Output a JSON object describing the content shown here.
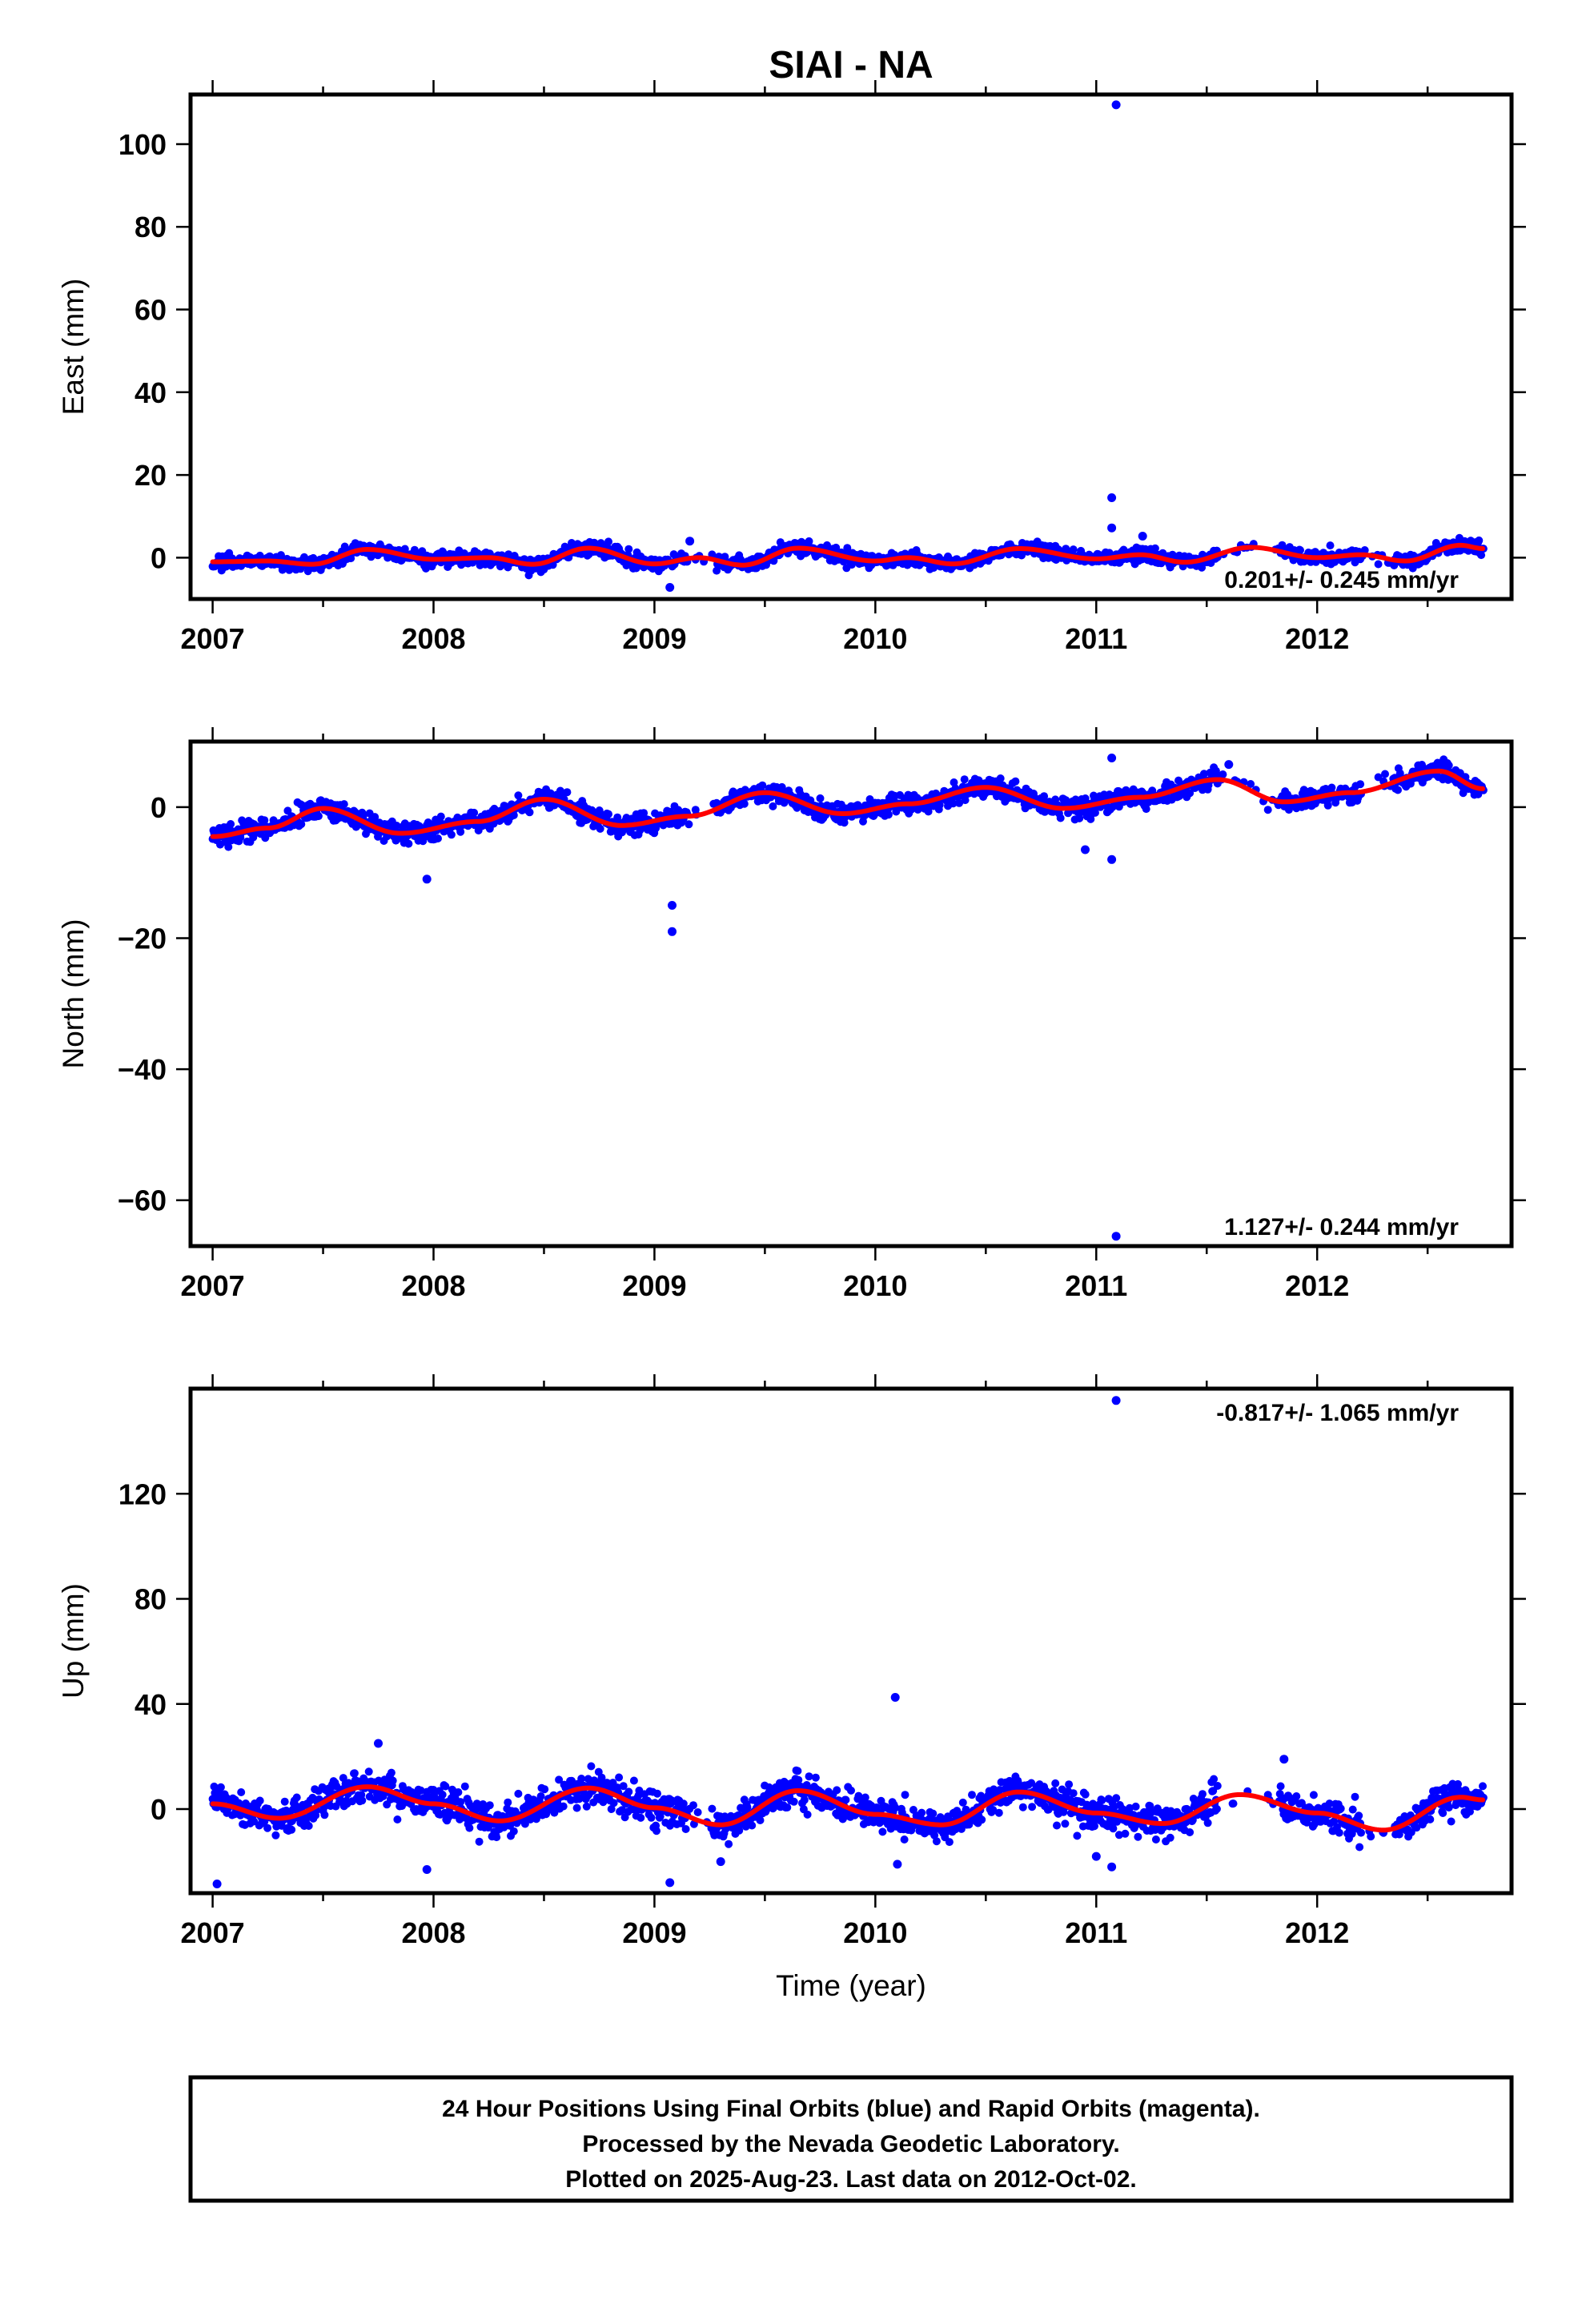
{
  "title": "SIAI - NA",
  "colors": {
    "points": "#0000ff",
    "fit": "#ff0000",
    "frame": "#000000"
  },
  "chart_data": [
    {
      "type": "scatter",
      "name": "east",
      "ylabel": "East (mm)",
      "xlabel": "",
      "xlim": [
        2006.9,
        2012.88
      ],
      "ylim": [
        -10,
        112
      ],
      "xticks": [
        2007,
        2008,
        2009,
        2010,
        2011,
        2012
      ],
      "yticks": [
        0,
        20,
        40,
        60,
        80,
        100
      ],
      "rate_text": "0.201+/- 0.245 mm/yr",
      "rate_position": "bottom-right",
      "outliers": [
        [
          2011.09,
          109.5
        ],
        [
          2011.07,
          14.5
        ],
        [
          2011.07,
          7.2
        ],
        [
          2011.21,
          5.2
        ],
        [
          2009.07,
          -7.2
        ],
        [
          2009.16,
          4.0
        ]
      ],
      "fit": [
        [
          2007.0,
          -1.0
        ],
        [
          2007.25,
          -0.8
        ],
        [
          2007.45,
          -1.6
        ],
        [
          2007.7,
          2.0
        ],
        [
          2008.0,
          -0.4
        ],
        [
          2008.25,
          0.0
        ],
        [
          2008.45,
          -1.6
        ],
        [
          2008.7,
          2.3
        ],
        [
          2009.0,
          -1.5
        ],
        [
          2009.2,
          0.0
        ],
        [
          2009.4,
          -1.8
        ],
        [
          2009.65,
          2.3
        ],
        [
          2010.0,
          -0.8
        ],
        [
          2010.15,
          0.0
        ],
        [
          2010.35,
          -1.5
        ],
        [
          2010.65,
          2.2
        ],
        [
          2011.0,
          -0.3
        ],
        [
          2011.2,
          0.7
        ],
        [
          2011.4,
          -1.1
        ],
        [
          2011.7,
          2.5
        ],
        [
          2012.0,
          0.0
        ],
        [
          2012.2,
          0.7
        ],
        [
          2012.4,
          -0.8
        ],
        [
          2012.65,
          3.0
        ],
        [
          2012.75,
          2.2
        ]
      ]
    },
    {
      "type": "scatter",
      "name": "north",
      "ylabel": "North (mm)",
      "xlabel": "",
      "xlim": [
        2006.9,
        2012.88
      ],
      "ylim": [
        -67,
        10
      ],
      "xticks": [
        2007,
        2008,
        2009,
        2010,
        2011,
        2012
      ],
      "yticks": [
        0,
        -20,
        -40,
        -60
      ],
      "rate_text": "1.127+/- 0.244 mm/yr",
      "rate_position": "bottom-right",
      "outliers": [
        [
          2011.09,
          -65.5
        ],
        [
          2009.08,
          -15.0
        ],
        [
          2009.08,
          -19.0
        ],
        [
          2007.97,
          -11.0
        ],
        [
          2011.07,
          7.5
        ],
        [
          2011.07,
          -8.0
        ],
        [
          2010.95,
          -6.5
        ],
        [
          2011.6,
          6.5
        ]
      ],
      "fit": [
        [
          2007.0,
          -4.5
        ],
        [
          2007.25,
          -3.2
        ],
        [
          2007.5,
          -0.2
        ],
        [
          2007.85,
          -4.0
        ],
        [
          2008.2,
          -2.2
        ],
        [
          2008.5,
          1.2
        ],
        [
          2008.85,
          -2.8
        ],
        [
          2009.15,
          -1.4
        ],
        [
          2009.5,
          2.2
        ],
        [
          2009.85,
          -1.0
        ],
        [
          2010.15,
          0.5
        ],
        [
          2010.5,
          3.0
        ],
        [
          2010.85,
          -0.2
        ],
        [
          2011.2,
          1.5
        ],
        [
          2011.55,
          4.2
        ],
        [
          2011.85,
          0.8
        ],
        [
          2012.15,
          2.2
        ],
        [
          2012.55,
          5.5
        ],
        [
          2012.75,
          2.8
        ]
      ]
    },
    {
      "type": "scatter",
      "name": "up",
      "ylabel": "Up (mm)",
      "xlabel": "Time (year)",
      "xlim": [
        2006.9,
        2012.88
      ],
      "ylim": [
        -32,
        160
      ],
      "xticks": [
        2007,
        2008,
        2009,
        2010,
        2011,
        2012
      ],
      "yticks": [
        0,
        40,
        80,
        120
      ],
      "rate_text": "-0.817+/- 1.065 mm/yr",
      "rate_position": "top-right",
      "outliers": [
        [
          2011.09,
          155.5
        ],
        [
          2010.09,
          42.5
        ],
        [
          2007.02,
          -28.5
        ],
        [
          2007.97,
          -23.0
        ],
        [
          2009.07,
          -28.0
        ],
        [
          2011.07,
          -22.0
        ],
        [
          2010.1,
          -21.0
        ],
        [
          2011.0,
          -18.0
        ],
        [
          2007.75,
          25.0
        ],
        [
          2011.85,
          19.0
        ],
        [
          2009.3,
          -20.0
        ]
      ],
      "fit": [
        [
          2007.0,
          2.0
        ],
        [
          2007.3,
          -3.5
        ],
        [
          2007.7,
          8.5
        ],
        [
          2008.0,
          2.0
        ],
        [
          2008.3,
          -4.5
        ],
        [
          2008.7,
          8.0
        ],
        [
          2009.0,
          0.5
        ],
        [
          2009.3,
          -6.0
        ],
        [
          2009.65,
          7.0
        ],
        [
          2010.0,
          -2.0
        ],
        [
          2010.3,
          -6.0
        ],
        [
          2010.65,
          6.5
        ],
        [
          2011.0,
          -1.5
        ],
        [
          2011.3,
          -5.5
        ],
        [
          2011.65,
          5.5
        ],
        [
          2012.0,
          -1.5
        ],
        [
          2012.3,
          -8.0
        ],
        [
          2012.65,
          4.5
        ],
        [
          2012.75,
          3.5
        ]
      ]
    }
  ],
  "footer": {
    "line1": "24 Hour Positions Using Final Orbits (blue) and Rapid Orbits (magenta).",
    "line2": "Processed by the Nevada Geodetic Laboratory.",
    "line3": "Plotted on 2025-Aug-23. Last data on 2012-Oct-02."
  }
}
